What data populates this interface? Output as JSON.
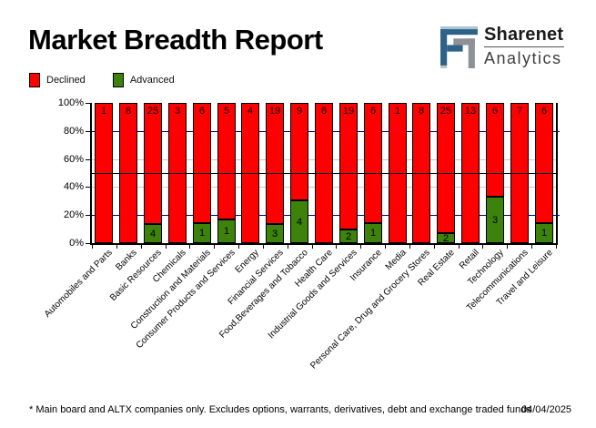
{
  "header": {
    "title": "Market Breadth Report",
    "logo": {
      "name": "Sharenet",
      "sub": "Analytics",
      "icon": "sharenet-square-spiral-logo",
      "blue": "#2E6288",
      "light_blue": "#A8C4D6",
      "gray": "#8E9296",
      "light_gray": "#C2C4C6"
    }
  },
  "legend": [
    {
      "label": "Declined",
      "color": "#FF0000"
    },
    {
      "label": "Advanced",
      "color": "#3C820B"
    }
  ],
  "chart_data": {
    "type": "bar",
    "stacked": true,
    "percent_stacked": true,
    "title": "Market Breadth Report",
    "xlabel": "",
    "ylabel": "",
    "ylim": [
      0,
      100
    ],
    "yticks": [
      {
        "label": "100%",
        "value": 100
      },
      {
        "label": "80%",
        "value": 80
      },
      {
        "label": "60%",
        "value": 60
      },
      {
        "label": "40%",
        "value": 40
      },
      {
        "label": "20%",
        "value": 20
      },
      {
        "label": "0%",
        "value": 0
      }
    ],
    "gridlines": {
      "navy": [
        20,
        80
      ],
      "silver": [
        40,
        60
      ],
      "black_reference": [
        50
      ]
    },
    "gridline_colors": {
      "navy": "#000080",
      "silver": "#C8C8C8"
    },
    "legend_position": "top-left",
    "categories": [
      "Automobiles and Parts",
      "Banks",
      "Basic Resources",
      "Chemicals",
      "Construction and Materials",
      "Consumer Products and Services",
      "Energy",
      "Financial Services",
      "Food,Beverages and Tobacco",
      "Health Care",
      "Industrial Goods and Services",
      "Insurance",
      "Media",
      "Personal Care, Drug and Grocery Stores",
      "Real Estate",
      "Retail",
      "Technology",
      "Telecommunications",
      "Travel and Leisure"
    ],
    "series": [
      {
        "name": "Declined",
        "color": "#FF0000",
        "values": [
          1,
          8,
          25,
          3,
          6,
          5,
          4,
          19,
          9,
          6,
          19,
          6,
          1,
          8,
          25,
          13,
          6,
          7,
          6
        ]
      },
      {
        "name": "Advanced",
        "color": "#3C820B",
        "values": [
          0,
          0,
          4,
          0,
          1,
          1,
          0,
          3,
          4,
          0,
          2,
          1,
          0,
          0,
          2,
          0,
          3,
          0,
          1
        ]
      }
    ]
  },
  "footer": {
    "note": "* Main board and ALTX companies only. Excludes options, warrants, derivatives, debt and exchange traded funds",
    "date": "04/04/2025"
  }
}
